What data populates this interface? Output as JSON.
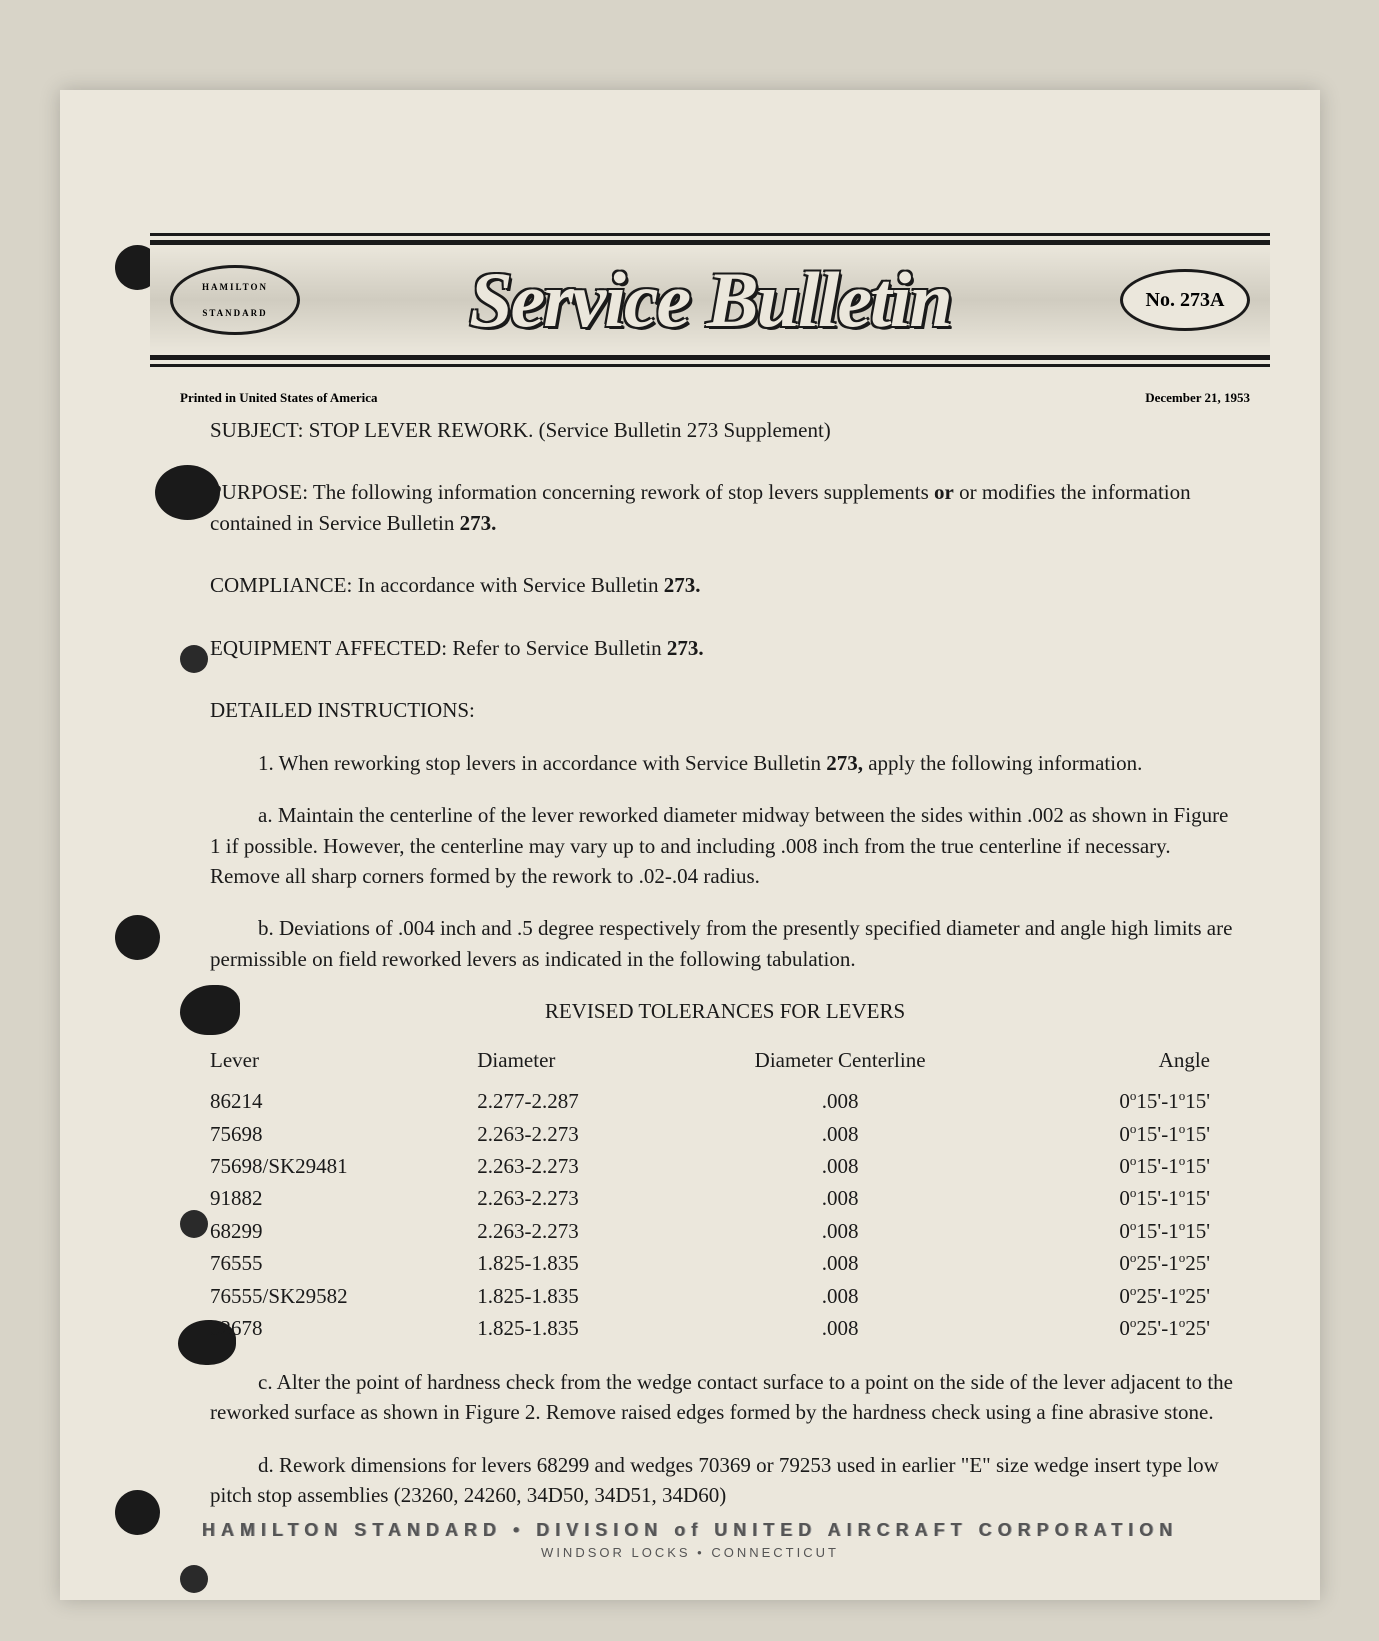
{
  "masthead": {
    "logo_top": "HAMILTON",
    "logo_bottom": "STANDARD",
    "script_title": "Service Bulletin",
    "number_label": "No. 273A"
  },
  "meta": {
    "printed": "Printed in United States of America",
    "date": "December 21, 1953"
  },
  "subject": {
    "label": "SUBJECT:",
    "text": "STOP LEVER REWORK.",
    "paren": "(Service Bulletin 273 Supplement)"
  },
  "purpose": {
    "label": "PURPOSE:",
    "text_a": "The following information concerning rework of stop levers supplements ",
    "text_b": "or modifies the information contained in Service Bulletin ",
    "bold": "273."
  },
  "compliance": {
    "label": "COMPLIANCE:",
    "text": "In accordance with Service Bulletin ",
    "bold": "273."
  },
  "equipment": {
    "label": "EQUIPMENT AFFECTED:",
    "text": "Refer to Service Bulletin ",
    "bold": "273."
  },
  "instructions": {
    "heading": "DETAILED INSTRUCTIONS:",
    "item1": "1.  When reworking stop levers in accordance with Service Bulletin ",
    "item1_bold": "273,",
    "item1_tail": " apply the following information.",
    "item_a": "a.  Maintain the centerline of the lever reworked diameter midway between the sides within .002 as shown in Figure 1 if possible.  However, the centerline may vary up to and including .008 inch from the true centerline if necessary.  Remove all sharp corners formed by the rework to .02-.04 radius.",
    "item_b": "b.  Deviations of .004 inch and .5 degree respectively from the presently specified diameter and angle high limits are permissible on field reworked levers as indicated in the following tabulation.",
    "item_c": "c.  Alter the point of hardness check from the wedge contact surface to a point on the side of the lever adjacent to the reworked surface as shown in Figure 2.  Remove raised edges formed by the hardness check using a fine abrasive stone.",
    "item_d": "d.  Rework dimensions for levers 68299 and wedges 70369 or 79253 used in earlier \"E\" size wedge insert type low pitch stop assemblies (23260, 24260, 34D50, 34D51, 34D60)"
  },
  "table": {
    "title": "REVISED TOLERANCES FOR LEVERS",
    "columns": [
      "Lever",
      "Diameter",
      "Diameter Centerline",
      "Angle"
    ],
    "rows": [
      {
        "lever": "86214",
        "diameter": "2.277-2.287",
        "centerline": ".008",
        "angle_min": "0",
        "angle_min_m": "15",
        "angle_max": "1",
        "angle_max_m": "15"
      },
      {
        "lever": "75698",
        "diameter": "2.263-2.273",
        "centerline": ".008",
        "angle_min": "0",
        "angle_min_m": "15",
        "angle_max": "1",
        "angle_max_m": "15"
      },
      {
        "lever": "75698/SK29481",
        "diameter": "2.263-2.273",
        "centerline": ".008",
        "angle_min": "0",
        "angle_min_m": "15",
        "angle_max": "1",
        "angle_max_m": "15"
      },
      {
        "lever": "91882",
        "diameter": "2.263-2.273",
        "centerline": ".008",
        "angle_min": "0",
        "angle_min_m": "15",
        "angle_max": "1",
        "angle_max_m": "15"
      },
      {
        "lever": "68299",
        "diameter": "2.263-2.273",
        "centerline": ".008",
        "angle_min": "0",
        "angle_min_m": "15",
        "angle_max": "1",
        "angle_max_m": "15"
      },
      {
        "lever": "76555",
        "diameter": "1.825-1.835",
        "centerline": ".008",
        "angle_min": "0",
        "angle_min_m": "25",
        "angle_max": "1",
        "angle_max_m": "25"
      },
      {
        "lever": "76555/SK29582",
        "diameter": "1.825-1.835",
        "centerline": ".008",
        "angle_min": "0",
        "angle_min_m": "25",
        "angle_max": "1",
        "angle_max_m": "25"
      },
      {
        "lever": "92678",
        "diameter": "1.825-1.835",
        "centerline": ".008",
        "angle_min": "0",
        "angle_min_m": "25",
        "angle_max": "1",
        "angle_max_m": "25"
      }
    ]
  },
  "footer": {
    "line1": "HAMILTON STANDARD • DIVISION of UNITED AIRCRAFT CORPORATION",
    "line2": "WINDSOR LOCKS • CONNECTICUT"
  },
  "colors": {
    "page_bg": "#ebe7dc",
    "outer_bg": "#d8d4c8",
    "ink": "#1a1a1a",
    "footer_ink": "#555555"
  },
  "typography": {
    "body_pt": 21,
    "script_pt": 78,
    "meta_pt": 13,
    "footer_line1_pt": 18,
    "footer_line2_pt": 13
  }
}
